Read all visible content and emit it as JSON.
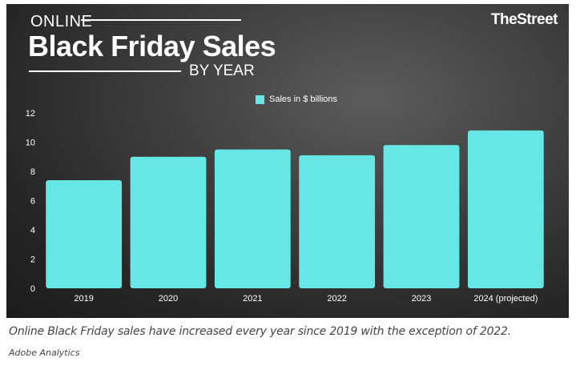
{
  "header": {
    "kicker": "ONLINE",
    "title": "Black Friday Sales",
    "subtitle": "BY YEAR",
    "brand": "TheStreet"
  },
  "caption": "Online Black Friday sales have increased every year since 2019 with the exception of 2022.",
  "source": "Adobe Analytics",
  "colors": {
    "bar": "#67e6e6",
    "text": "#ffffff",
    "caption": "#444444"
  },
  "chart_data": {
    "type": "bar",
    "categories": [
      "2019",
      "2020",
      "2021",
      "2022",
      "2023",
      "2024 (projected)"
    ],
    "series": [
      {
        "name": "Sales in $ billions",
        "values": [
          7.4,
          9.0,
          9.5,
          9.1,
          9.8,
          10.8
        ]
      }
    ],
    "ylim": [
      0,
      12
    ],
    "yticks": [
      0,
      2,
      4,
      6,
      8,
      10,
      12
    ],
    "grid": false,
    "legend": "top-center"
  }
}
